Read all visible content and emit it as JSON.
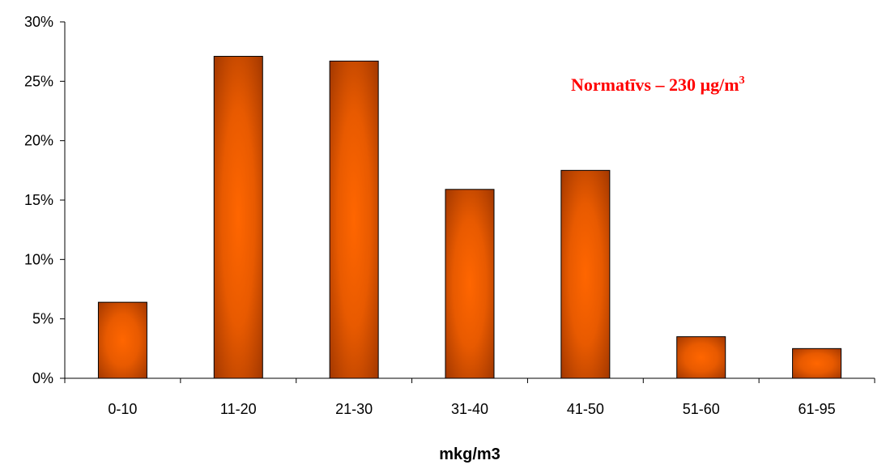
{
  "chart_data": {
    "type": "bar",
    "categories": [
      "0-10",
      "11-20",
      "21-30",
      "31-40",
      "41-50",
      "51-60",
      "61-95"
    ],
    "values": [
      6.4,
      27.1,
      26.7,
      15.9,
      17.5,
      3.5,
      2.5
    ],
    "y_ticks": [
      "0%",
      "5%",
      "10%",
      "15%",
      "20%",
      "25%",
      "30%"
    ],
    "ylim": [
      0,
      30
    ],
    "xlabel": "mkg/m3",
    "ylabel": "",
    "title": "",
    "grid": false,
    "legend": false,
    "annotation": {
      "text": "Normatīvs – 230 µg/m",
      "superscript": "3",
      "color": "#ff0000"
    },
    "bar_colors": {
      "center": "#ff6600",
      "edge": "#993300",
      "outline": "#000000"
    }
  }
}
